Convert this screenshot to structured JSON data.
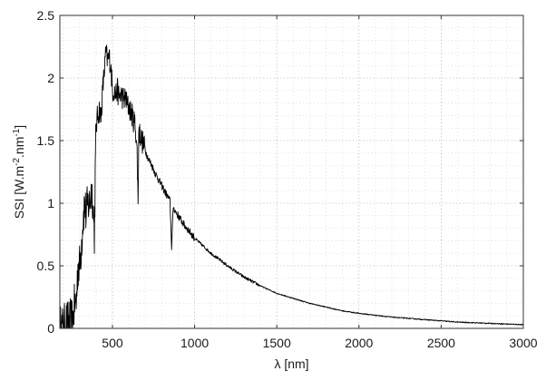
{
  "chart_data": {
    "type": "line",
    "title": "",
    "xlabel": "λ [nm]",
    "ylabel": "SSI [W.m-2.nm-1]",
    "ylabel_parts": {
      "base": "SSI [W.m",
      "exp1": "-2",
      "mid": ".nm",
      "exp2": "-1",
      "end": "]"
    },
    "xlim": [
      180,
      3000
    ],
    "ylim": [
      0,
      2.5
    ],
    "x_ticks": [
      500,
      1000,
      1500,
      2000,
      2500,
      3000
    ],
    "x_tick_labels": [
      "500",
      "1000",
      "1500",
      "2000",
      "2500",
      "3000"
    ],
    "x_minor_step": 100,
    "y_ticks": [
      0,
      0.5,
      1,
      1.5,
      2,
      2.5
    ],
    "y_tick_labels": [
      "0",
      "0.5",
      "1",
      "1.5",
      "2",
      "2.5"
    ],
    "y_minor_step": 0.1,
    "grid": true,
    "line_color": "#000000",
    "series": [
      {
        "x": [
          180,
          200,
          220,
          240,
          250,
          260,
          270,
          280,
          290,
          300,
          310,
          320,
          330,
          340,
          350,
          360,
          370,
          380,
          390,
          395,
          400,
          410,
          420,
          430,
          440,
          450,
          460,
          470,
          480,
          490,
          500,
          510,
          520,
          530,
          540,
          550,
          560,
          570,
          580,
          590,
          600,
          620,
          640,
          650,
          656,
          660,
          680,
          700,
          720,
          740,
          760,
          780,
          800,
          820,
          850,
          860,
          870,
          880,
          900,
          940,
          960,
          1000,
          1100,
          1200,
          1300,
          1400,
          1500,
          1600,
          1700,
          1800,
          1900,
          2000,
          2200,
          2400,
          2600,
          2800,
          3000
        ],
        "y": [
          0.01,
          0.01,
          0.05,
          0.06,
          0.07,
          0.07,
          0.2,
          0.2,
          0.5,
          0.5,
          0.65,
          0.85,
          1.0,
          0.9,
          1.0,
          0.99,
          1.1,
          1.05,
          0.75,
          1.2,
          1.6,
          1.7,
          1.75,
          1.68,
          1.9,
          2.05,
          2.2,
          2.14,
          2.17,
          2.1,
          1.9,
          1.9,
          1.87,
          1.9,
          1.85,
          1.87,
          1.85,
          1.83,
          1.84,
          1.78,
          1.77,
          1.7,
          1.62,
          1.4,
          1.0,
          1.58,
          1.5,
          1.42,
          1.35,
          1.3,
          1.24,
          1.19,
          1.14,
          1.09,
          1.02,
          0.65,
          0.97,
          0.94,
          0.9,
          0.82,
          0.79,
          0.72,
          0.6,
          0.5,
          0.41,
          0.34,
          0.28,
          0.24,
          0.2,
          0.17,
          0.14,
          0.12,
          0.09,
          0.07,
          0.05,
          0.04,
          0.03
        ]
      }
    ]
  }
}
